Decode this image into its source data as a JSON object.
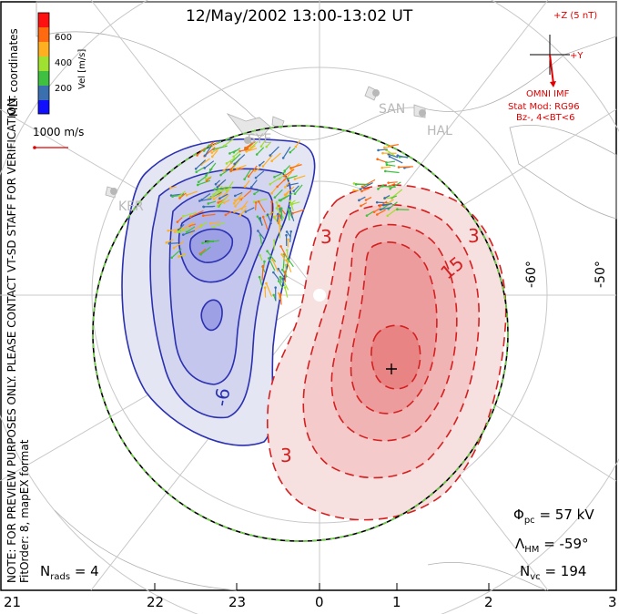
{
  "title": "12/May/2002 13:00-13:02 UT",
  "side_notes": {
    "coords": "MLT coordinates",
    "preview": "NOTE: FOR PREVIEW PURPOSES ONLY. PLEASE CONTACT VT-SD STAFF FOR VERIFICATION.",
    "fit": "FitOrder: 8, mapEX format"
  },
  "velocity_scale": {
    "label": "Vel [m/s]",
    "ticks": [
      "600",
      "400",
      "200"
    ],
    "colors": [
      "#1010ff",
      "#3a6fb0",
      "#40c040",
      "#a0e030",
      "#ffb020",
      "#ff6a10",
      "#ff1010"
    ]
  },
  "reference_vector": "1000 m/s",
  "imf": {
    "z_label": "+Z (5 nT)",
    "y_label": "+Y",
    "source": "OMNI IMF",
    "model": "Stat Mod: RG96",
    "condition": "Bz-, 4<BT<6",
    "color": "#e00000"
  },
  "stations": [
    "KER",
    "SYE",
    "SAN",
    "HAL"
  ],
  "lat_labels": [
    "-60°",
    "-50°"
  ],
  "contour_labels": [
    "-6",
    "3",
    "15",
    "3",
    "3"
  ],
  "stats": {
    "phi_pc": "57 kV",
    "lambda_hm": "-59°",
    "n_vc": "194",
    "n_rads": "4"
  },
  "stat_labels": {
    "phi": "Φ",
    "phi_sub": "pc",
    "lambda": "Λ",
    "lambda_sub": "HM",
    "nvc": "N",
    "nvc_sub": "vc",
    "nrads": "N",
    "nrads_sub": "rads"
  },
  "mlt_ticks": [
    "21",
    "22",
    "23",
    "0",
    "1",
    "2",
    "3"
  ],
  "colors": {
    "negative_cell": "#2a30b0",
    "positive_cell": "#d42020",
    "boundary_dash": "#6ad040",
    "land": "#d0d0d0"
  }
}
